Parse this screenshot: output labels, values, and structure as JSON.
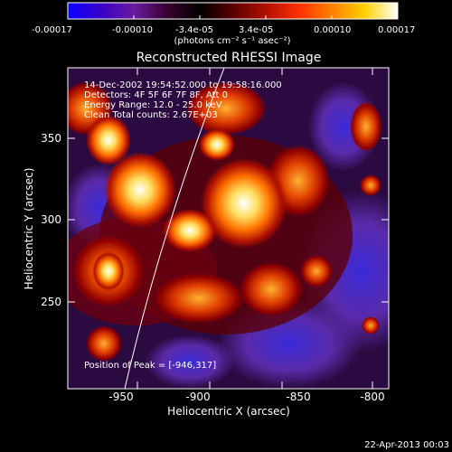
{
  "colorbar": {
    "ticks": [
      "-0.00017",
      "-0.00010",
      "-3.4e-05",
      "3.4e-05",
      "0.00010",
      "0.00017"
    ],
    "units": "(photons cm⁻² s⁻¹ asec⁻²)",
    "colors": [
      "#0a00ff",
      "#3a00c8",
      "#6a1aa0",
      "#3a0030",
      "#000000",
      "#5a0000",
      "#b01000",
      "#ff3000",
      "#ff8000",
      "#ffd000",
      "#ffffff"
    ]
  },
  "image": {
    "title": "Reconstructed RHESSI Image",
    "info": [
      "14-Dec-2002 19:54:52.000 to 19:58:16.000",
      "Detectors: 4F 5F 6F 7F 8F, Att 0",
      "Energy Range: 12.0 - 25.0 keV",
      "Clean    Total counts: 2.67E+03"
    ],
    "peak_label": "Position of Peak = [-946,317]"
  },
  "axes": {
    "xlabel": "Heliocentric X (arcsec)",
    "ylabel": "Heliocentric Y (arcsec)",
    "xticks": [
      "-950",
      "-900",
      "-850",
      "-800"
    ],
    "yticks": [
      "350",
      "300",
      "250"
    ],
    "xlim": [
      -987,
      -789
    ],
    "ylim": [
      200,
      384
    ]
  },
  "footer": {
    "date": "22-Apr-2013 00:03"
  }
}
